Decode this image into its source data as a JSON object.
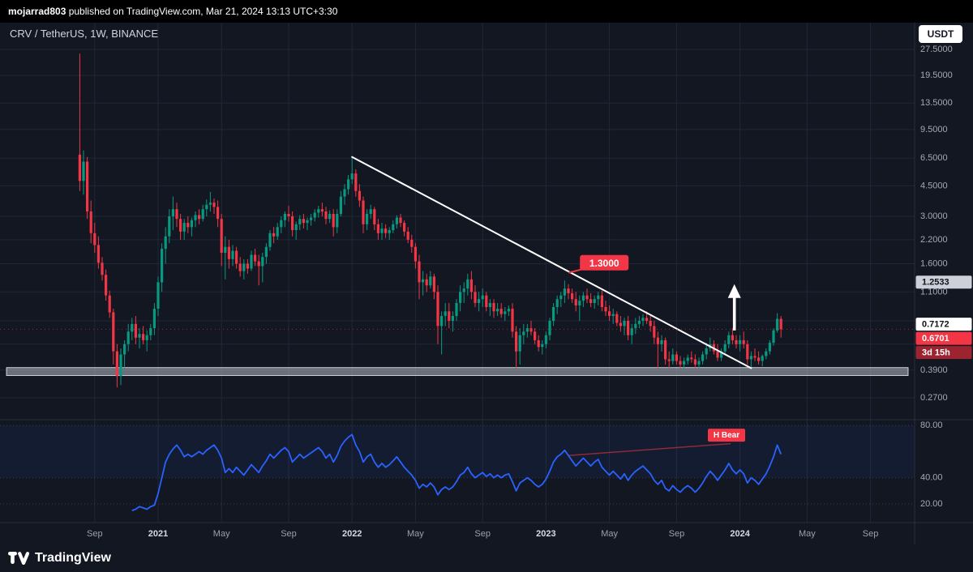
{
  "header": {
    "username": "mojarrad803",
    "publish_info": " published on TradingView.com, Mar 21, 2024 13:13 UTC+3:30"
  },
  "chart": {
    "symbol_title": "CRV / TetherUS, 1W, BINANCE",
    "currency_button": "USDT",
    "price_axis_badges": [
      {
        "text": "1.2533",
        "price": 1.2533,
        "bg": "#cdd0d8",
        "fg": "#10131a"
      },
      {
        "text": "0.7172",
        "price": 0.7172,
        "bg": "#ffffff",
        "fg": "#10131a"
      },
      {
        "text": "0.6701",
        "price": 0.6701,
        "bg": "#f23645",
        "fg": "#ffffff"
      },
      {
        "text": "3d 15h",
        "attach": "stack",
        "bg": "#9c2430",
        "fg": "#ffffff"
      }
    ],
    "colors": {
      "background": "#131722",
      "up": "#089981",
      "down": "#f23645",
      "rsi_line": "#2962ff",
      "grid": "#212739",
      "trendline": "#ffffff",
      "accent_red": "#f23645"
    }
  },
  "footer": {
    "brand": "TradingView"
  },
  "chart_data": {
    "type": "candlestick",
    "title": "CRV / TetherUS, 1W, BINANCE",
    "symbol": "CRV/USDT",
    "exchange": "BINANCE",
    "timeframe": "1W",
    "scale": "log",
    "last_price": 0.6701,
    "countdown": "3d 15h",
    "price_ticks": [
      [
        "27.5000",
        27.5
      ],
      [
        "19.5000",
        19.5
      ],
      [
        "13.5000",
        13.5
      ],
      [
        "9.5000",
        9.5
      ],
      [
        "6.5000",
        6.5
      ],
      [
        "4.5000",
        4.5
      ],
      [
        "3.0000",
        3.0
      ],
      [
        "2.2000",
        2.2
      ],
      [
        "1.6000",
        1.6
      ],
      [
        "1.1000",
        1.1
      ],
      [
        "0.3900",
        0.39
      ],
      [
        "0.2700",
        0.27
      ]
    ],
    "price_grid_extra": [
      0.75,
      0.55
    ],
    "time_ticks": [
      {
        "label": "Sep",
        "index": 4,
        "year": false
      },
      {
        "label": "2021",
        "index": 21,
        "year": true
      },
      {
        "label": "May",
        "index": 38,
        "year": false
      },
      {
        "label": "Sep",
        "index": 56,
        "year": false
      },
      {
        "label": "2022",
        "index": 73,
        "year": true
      },
      {
        "label": "May",
        "index": 90,
        "year": false
      },
      {
        "label": "Sep",
        "index": 108,
        "year": false
      },
      {
        "label": "2023",
        "index": 125,
        "year": true
      },
      {
        "label": "May",
        "index": 142,
        "year": false
      },
      {
        "label": "Sep",
        "index": 160,
        "year": false
      },
      {
        "label": "2024",
        "index": 177,
        "year": true
      },
      {
        "label": "May",
        "index": 195,
        "year": false
      },
      {
        "label": "Sep",
        "index": 212,
        "year": false
      }
    ],
    "candles": [
      [
        6.8,
        26.0,
        4.2,
        4.8
      ],
      [
        4.8,
        7.2,
        4.0,
        6.2
      ],
      [
        6.2,
        6.6,
        2.9,
        3.2
      ],
      [
        3.2,
        3.7,
        2.1,
        2.4
      ],
      [
        2.4,
        2.75,
        1.85,
        2.05
      ],
      [
        2.05,
        2.3,
        1.5,
        1.62
      ],
      [
        1.62,
        1.75,
        1.28,
        1.38
      ],
      [
        1.38,
        1.48,
        0.98,
        1.05
      ],
      [
        1.05,
        1.12,
        0.78,
        0.84
      ],
      [
        0.84,
        0.88,
        0.42,
        0.5
      ],
      [
        0.5,
        0.55,
        0.31,
        0.36
      ],
      [
        0.36,
        0.52,
        0.32,
        0.48
      ],
      [
        0.48,
        0.58,
        0.4,
        0.55
      ],
      [
        0.55,
        0.72,
        0.5,
        0.65
      ],
      [
        0.65,
        0.78,
        0.58,
        0.72
      ],
      [
        0.72,
        0.8,
        0.55,
        0.6
      ],
      [
        0.6,
        0.68,
        0.52,
        0.63
      ],
      [
        0.63,
        0.7,
        0.55,
        0.58
      ],
      [
        0.58,
        0.66,
        0.5,
        0.62
      ],
      [
        0.62,
        0.72,
        0.58,
        0.68
      ],
      [
        0.68,
        0.95,
        0.62,
        0.88
      ],
      [
        0.88,
        1.35,
        0.8,
        1.25
      ],
      [
        1.25,
        2.1,
        1.1,
        1.95
      ],
      [
        1.95,
        2.6,
        1.6,
        2.3
      ],
      [
        2.3,
        3.3,
        2.1,
        3.0
      ],
      [
        3.0,
        3.9,
        2.5,
        3.3
      ],
      [
        3.3,
        3.6,
        2.6,
        2.9
      ],
      [
        2.9,
        3.1,
        2.2,
        2.45
      ],
      [
        2.45,
        2.9,
        2.2,
        2.75
      ],
      [
        2.75,
        3.0,
        2.4,
        2.6
      ],
      [
        2.6,
        2.95,
        2.3,
        2.85
      ],
      [
        2.85,
        3.2,
        2.6,
        3.05
      ],
      [
        3.05,
        3.3,
        2.7,
        2.9
      ],
      [
        2.9,
        3.5,
        2.8,
        3.3
      ],
      [
        3.3,
        3.75,
        3.0,
        3.5
      ],
      [
        3.5,
        4.15,
        3.2,
        3.6
      ],
      [
        3.6,
        3.8,
        3.1,
        3.4
      ],
      [
        3.4,
        3.7,
        2.6,
        2.9
      ],
      [
        2.9,
        3.1,
        1.55,
        1.85
      ],
      [
        1.85,
        2.3,
        1.3,
        2.0
      ],
      [
        2.0,
        2.2,
        1.5,
        1.7
      ],
      [
        1.7,
        2.05,
        1.55,
        1.9
      ],
      [
        1.9,
        2.0,
        1.5,
        1.6
      ],
      [
        1.6,
        1.75,
        1.35,
        1.45
      ],
      [
        1.45,
        1.7,
        1.3,
        1.6
      ],
      [
        1.6,
        1.7,
        1.4,
        1.5
      ],
      [
        1.5,
        1.9,
        1.45,
        1.8
      ],
      [
        1.8,
        1.95,
        1.55,
        1.65
      ],
      [
        1.65,
        1.8,
        1.2,
        1.55
      ],
      [
        1.55,
        1.85,
        1.25,
        1.75
      ],
      [
        1.75,
        2.1,
        1.6,
        2.0
      ],
      [
        2.0,
        2.5,
        1.9,
        2.4
      ],
      [
        2.4,
        2.6,
        2.1,
        2.3
      ],
      [
        2.3,
        2.75,
        2.2,
        2.6
      ],
      [
        2.6,
        3.0,
        2.4,
        2.85
      ],
      [
        2.85,
        3.2,
        2.6,
        3.1
      ],
      [
        3.1,
        3.45,
        2.8,
        3.0
      ],
      [
        3.0,
        3.2,
        2.3,
        2.5
      ],
      [
        2.5,
        2.8,
        2.2,
        2.7
      ],
      [
        2.7,
        3.05,
        2.5,
        2.9
      ],
      [
        2.9,
        3.1,
        2.55,
        2.75
      ],
      [
        2.75,
        2.95,
        2.5,
        2.85
      ],
      [
        2.85,
        3.1,
        2.65,
        2.95
      ],
      [
        2.95,
        3.3,
        2.8,
        3.15
      ],
      [
        3.15,
        3.45,
        2.95,
        3.3
      ],
      [
        3.3,
        3.6,
        3.0,
        3.2
      ],
      [
        3.2,
        3.4,
        2.7,
        2.9
      ],
      [
        2.9,
        3.25,
        2.75,
        3.1
      ],
      [
        3.1,
        3.3,
        2.3,
        2.6
      ],
      [
        2.6,
        3.3,
        2.4,
        3.1
      ],
      [
        3.1,
        4.2,
        3.0,
        3.9
      ],
      [
        3.9,
        4.6,
        3.5,
        4.3
      ],
      [
        4.3,
        5.2,
        4.0,
        4.9
      ],
      [
        4.9,
        6.5,
        4.6,
        5.3
      ],
      [
        5.3,
        5.6,
        3.9,
        4.2
      ],
      [
        4.2,
        4.6,
        3.4,
        3.7
      ],
      [
        3.7,
        3.9,
        2.4,
        2.7
      ],
      [
        2.7,
        3.3,
        2.5,
        3.1
      ],
      [
        3.1,
        3.5,
        2.9,
        3.3
      ],
      [
        3.3,
        3.4,
        2.5,
        2.7
      ],
      [
        2.7,
        2.9,
        2.2,
        2.4
      ],
      [
        2.4,
        2.75,
        2.2,
        2.55
      ],
      [
        2.55,
        2.7,
        2.25,
        2.4
      ],
      [
        2.4,
        2.6,
        2.2,
        2.5
      ],
      [
        2.5,
        2.85,
        2.4,
        2.7
      ],
      [
        2.7,
        3.05,
        2.55,
        2.95
      ],
      [
        2.95,
        3.1,
        2.6,
        2.75
      ],
      [
        2.75,
        2.85,
        2.3,
        2.45
      ],
      [
        2.45,
        2.6,
        2.1,
        2.2
      ],
      [
        2.2,
        2.35,
        1.85,
        2.0
      ],
      [
        2.0,
        2.1,
        1.5,
        1.65
      ],
      [
        1.65,
        1.8,
        1.0,
        1.25
      ],
      [
        1.25,
        1.45,
        1.05,
        1.3
      ],
      [
        1.3,
        1.4,
        1.1,
        1.2
      ],
      [
        1.2,
        1.45,
        1.15,
        1.35
      ],
      [
        1.35,
        1.4,
        1.0,
        1.1
      ],
      [
        1.1,
        1.2,
        0.55,
        0.7
      ],
      [
        0.7,
        0.85,
        0.48,
        0.8
      ],
      [
        0.8,
        0.95,
        0.7,
        0.85
      ],
      [
        0.85,
        0.95,
        0.68,
        0.75
      ],
      [
        0.75,
        0.85,
        0.65,
        0.8
      ],
      [
        0.8,
        1.0,
        0.75,
        0.95
      ],
      [
        0.95,
        1.2,
        0.85,
        1.1
      ],
      [
        1.1,
        1.25,
        0.95,
        1.15
      ],
      [
        1.15,
        1.4,
        1.05,
        1.3
      ],
      [
        1.3,
        1.45,
        1.0,
        1.1
      ],
      [
        1.1,
        1.2,
        0.9,
        0.95
      ],
      [
        0.95,
        1.1,
        0.85,
        1.0
      ],
      [
        1.0,
        1.15,
        0.9,
        1.05
      ],
      [
        1.05,
        1.1,
        0.85,
        0.9
      ],
      [
        0.9,
        1.0,
        0.8,
        0.95
      ],
      [
        0.95,
        1.0,
        0.78,
        0.85
      ],
      [
        0.85,
        0.95,
        0.8,
        0.88
      ],
      [
        0.88,
        0.95,
        0.78,
        0.82
      ],
      [
        0.82,
        0.9,
        0.75,
        0.85
      ],
      [
        0.85,
        0.92,
        0.8,
        0.88
      ],
      [
        0.88,
        0.95,
        0.6,
        0.65
      ],
      [
        0.65,
        0.7,
        0.4,
        0.5
      ],
      [
        0.5,
        0.68,
        0.42,
        0.62
      ],
      [
        0.62,
        0.72,
        0.55,
        0.65
      ],
      [
        0.65,
        0.72,
        0.6,
        0.68
      ],
      [
        0.68,
        0.75,
        0.62,
        0.65
      ],
      [
        0.65,
        0.68,
        0.55,
        0.58
      ],
      [
        0.58,
        0.62,
        0.5,
        0.53
      ],
      [
        0.53,
        0.58,
        0.48,
        0.55
      ],
      [
        0.55,
        0.65,
        0.52,
        0.62
      ],
      [
        0.62,
        0.78,
        0.58,
        0.75
      ],
      [
        0.75,
        0.95,
        0.7,
        0.9
      ],
      [
        0.9,
        1.05,
        0.82,
        1.0
      ],
      [
        1.0,
        1.1,
        0.9,
        1.05
      ],
      [
        1.05,
        1.28,
        0.95,
        1.15
      ],
      [
        1.15,
        1.22,
        1.0,
        1.08
      ],
      [
        1.08,
        1.15,
        0.95,
        1.0
      ],
      [
        1.0,
        1.1,
        0.85,
        0.92
      ],
      [
        0.92,
        1.05,
        0.75,
        0.98
      ],
      [
        0.98,
        1.1,
        0.9,
        1.05
      ],
      [
        1.05,
        1.15,
        0.95,
        1.0
      ],
      [
        1.0,
        1.08,
        0.9,
        0.95
      ],
      [
        0.95,
        1.05,
        0.88,
        1.0
      ],
      [
        1.0,
        1.1,
        0.92,
        1.05
      ],
      [
        1.05,
        1.12,
        0.85,
        0.9
      ],
      [
        0.9,
        0.98,
        0.8,
        0.85
      ],
      [
        0.85,
        0.92,
        0.75,
        0.8
      ],
      [
        0.8,
        0.88,
        0.72,
        0.82
      ],
      [
        0.82,
        0.85,
        0.7,
        0.73
      ],
      [
        0.73,
        0.8,
        0.65,
        0.7
      ],
      [
        0.7,
        0.78,
        0.62,
        0.75
      ],
      [
        0.75,
        0.8,
        0.58,
        0.62
      ],
      [
        0.62,
        0.72,
        0.55,
        0.68
      ],
      [
        0.68,
        0.78,
        0.63,
        0.72
      ],
      [
        0.72,
        0.8,
        0.68,
        0.75
      ],
      [
        0.75,
        0.82,
        0.7,
        0.78
      ],
      [
        0.78,
        0.85,
        0.72,
        0.75
      ],
      [
        0.75,
        0.8,
        0.65,
        0.7
      ],
      [
        0.7,
        0.75,
        0.55,
        0.6
      ],
      [
        0.6,
        0.65,
        0.4,
        0.55
      ],
      [
        0.55,
        0.62,
        0.5,
        0.58
      ],
      [
        0.58,
        0.6,
        0.42,
        0.45
      ],
      [
        0.45,
        0.5,
        0.4,
        0.44
      ],
      [
        0.44,
        0.52,
        0.42,
        0.48
      ],
      [
        0.48,
        0.5,
        0.42,
        0.44
      ],
      [
        0.44,
        0.47,
        0.4,
        0.42
      ],
      [
        0.42,
        0.46,
        0.39,
        0.44
      ],
      [
        0.44,
        0.48,
        0.42,
        0.46
      ],
      [
        0.46,
        0.5,
        0.43,
        0.45
      ],
      [
        0.45,
        0.48,
        0.4,
        0.42
      ],
      [
        0.42,
        0.46,
        0.4,
        0.44
      ],
      [
        0.44,
        0.5,
        0.42,
        0.48
      ],
      [
        0.48,
        0.56,
        0.45,
        0.52
      ],
      [
        0.52,
        0.6,
        0.5,
        0.55
      ],
      [
        0.55,
        0.58,
        0.48,
        0.5
      ],
      [
        0.5,
        0.55,
        0.44,
        0.46
      ],
      [
        0.46,
        0.52,
        0.44,
        0.5
      ],
      [
        0.5,
        0.58,
        0.48,
        0.55
      ],
      [
        0.55,
        0.65,
        0.52,
        0.62
      ],
      [
        0.62,
        0.68,
        0.55,
        0.58
      ],
      [
        0.58,
        0.62,
        0.52,
        0.55
      ],
      [
        0.55,
        0.62,
        0.5,
        0.58
      ],
      [
        0.58,
        0.65,
        0.52,
        0.55
      ],
      [
        0.55,
        0.58,
        0.42,
        0.45
      ],
      [
        0.45,
        0.5,
        0.4,
        0.47
      ],
      [
        0.47,
        0.52,
        0.44,
        0.46
      ],
      [
        0.46,
        0.5,
        0.42,
        0.44
      ],
      [
        0.44,
        0.48,
        0.41,
        0.47
      ],
      [
        0.47,
        0.52,
        0.45,
        0.5
      ],
      [
        0.5,
        0.58,
        0.48,
        0.56
      ],
      [
        0.56,
        0.68,
        0.54,
        0.66
      ],
      [
        0.66,
        0.83,
        0.64,
        0.77
      ],
      [
        0.77,
        0.8,
        0.6,
        0.6701
      ]
    ],
    "lower_panel": {
      "name": "RSI",
      "line_color": "#2962ff",
      "gridlines": [
        [
          "80.00",
          80
        ],
        [
          "40.00",
          40
        ],
        [
          "20.00",
          20
        ]
      ],
      "band": [
        40,
        80
      ],
      "values": [
        null,
        null,
        null,
        null,
        null,
        null,
        null,
        null,
        null,
        null,
        null,
        null,
        null,
        null,
        15,
        16,
        18,
        17,
        16,
        18,
        19,
        28,
        40,
        52,
        58,
        62,
        65,
        61,
        56,
        58,
        56,
        58,
        60,
        58,
        61,
        63,
        65,
        61,
        55,
        44,
        47,
        44,
        48,
        45,
        42,
        46,
        50,
        47,
        44,
        49,
        53,
        58,
        55,
        58,
        61,
        63,
        60,
        52,
        55,
        58,
        55,
        57,
        59,
        61,
        63,
        60,
        55,
        58,
        52,
        57,
        64,
        68,
        71,
        73,
        65,
        60,
        52,
        56,
        58,
        52,
        48,
        51,
        48,
        50,
        53,
        56,
        52,
        48,
        45,
        42,
        38,
        32,
        35,
        33,
        36,
        33,
        27,
        31,
        33,
        31,
        33,
        37,
        42,
        44,
        48,
        43,
        40,
        42,
        44,
        41,
        43,
        40,
        42,
        40,
        42,
        43,
        37,
        30,
        36,
        38,
        40,
        38,
        35,
        33,
        35,
        39,
        45,
        52,
        56,
        58,
        61,
        57,
        53,
        49,
        52,
        55,
        52,
        49,
        52,
        54,
        48,
        45,
        42,
        45,
        42,
        39,
        43,
        38,
        42,
        45,
        47,
        49,
        46,
        43,
        38,
        35,
        38,
        32,
        30,
        34,
        31,
        29,
        32,
        34,
        32,
        29,
        32,
        36,
        41,
        45,
        42,
        38,
        42,
        46,
        51,
        46,
        43,
        46,
        43,
        36,
        40,
        38,
        35,
        39,
        43,
        49,
        56,
        65,
        58
      ]
    },
    "drawings": {
      "trendline": {
        "from": {
          "index": 73,
          "price": 6.6
        },
        "to": {
          "index": 180,
          "price": 0.4
        },
        "color": "#ffffff"
      },
      "support_zone": {
        "price_top": 0.403,
        "price_bottom": 0.3625
      },
      "up_arrow": {
        "index": 175.5,
        "tip_price": 1.22,
        "base_price": 0.66,
        "color": "#ffffff"
      },
      "price_callout": {
        "text": "1.3000",
        "index": 140.6,
        "price": 1.62,
        "pointer": {
          "index": 131,
          "price": 1.42
        },
        "bg": "#f23645"
      },
      "divergence_label": {
        "text": "H Bear",
        "index": 173.4,
        "value": 72.5,
        "bg": "#f23645"
      },
      "divergence_line": {
        "from": {
          "index": 131,
          "value": 57
        },
        "to": {
          "index": 174.5,
          "value": 66
        }
      }
    }
  }
}
